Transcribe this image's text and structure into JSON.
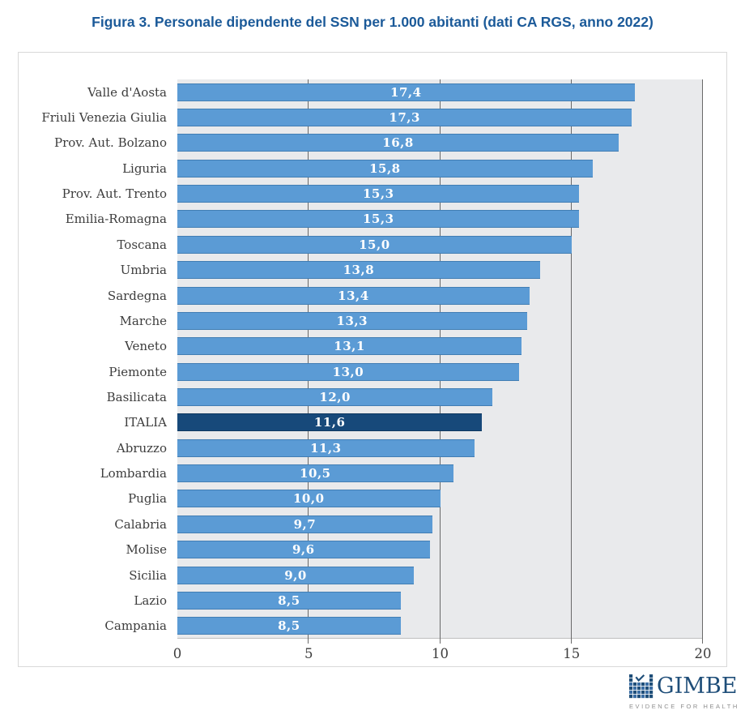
{
  "title": "Figura 3. Personale dipendente del SSN per 1.000 abitanti (dati CA RGS, anno 2022)",
  "chart_data": {
    "type": "bar",
    "orientation": "horizontal",
    "title": "Figura 3. Personale dipendente del SSN per 1.000 abitanti (dati CA RGS, anno 2022)",
    "categories": [
      "Valle d'Aosta",
      "Friuli Venezia Giulia",
      "Prov. Aut. Bolzano",
      "Liguria",
      "Prov. Aut. Trento",
      "Emilia-Romagna",
      "Toscana",
      "Umbria",
      "Sardegna",
      "Marche",
      "Veneto",
      "Piemonte",
      "Basilicata",
      "ITALIA",
      "Abruzzo",
      "Lombardia",
      "Puglia",
      "Calabria",
      "Molise",
      "Sicilia",
      "Lazio",
      "Campania"
    ],
    "values": [
      17.4,
      17.3,
      16.8,
      15.8,
      15.3,
      15.3,
      15.0,
      13.8,
      13.4,
      13.3,
      13.1,
      13.0,
      12.0,
      11.6,
      11.3,
      10.5,
      10.0,
      9.7,
      9.6,
      9.0,
      8.5,
      8.5
    ],
    "value_labels": [
      "17,4",
      "17,3",
      "16,8",
      "15,8",
      "15,3",
      "15,3",
      "15,0",
      "13,8",
      "13,4",
      "13,3",
      "13,1",
      "13,0",
      "12,0",
      "11,6",
      "11,3",
      "10,5",
      "10,0",
      "9,7",
      "9,6",
      "9,0",
      "8,5",
      "8,5"
    ],
    "highlight_category": "ITALIA",
    "xlim": [
      0,
      20
    ],
    "xticks": [
      0,
      5,
      10,
      15,
      20
    ],
    "gridlines_at": [
      5,
      10,
      15,
      20
    ],
    "legend": "none",
    "grid": "vertical gridlines at 5, 10, 15, 20 behind bars",
    "bar_color": "#5b9bd5",
    "highlight_color": "#17497a",
    "plot_bg_color": "#e9eaec",
    "gridline_color": "#696969",
    "title_color": "#1b5a99"
  },
  "footer": {
    "logo_text": "GIMBE",
    "logo_tagline": "EVIDENCE FOR HEALTH"
  }
}
